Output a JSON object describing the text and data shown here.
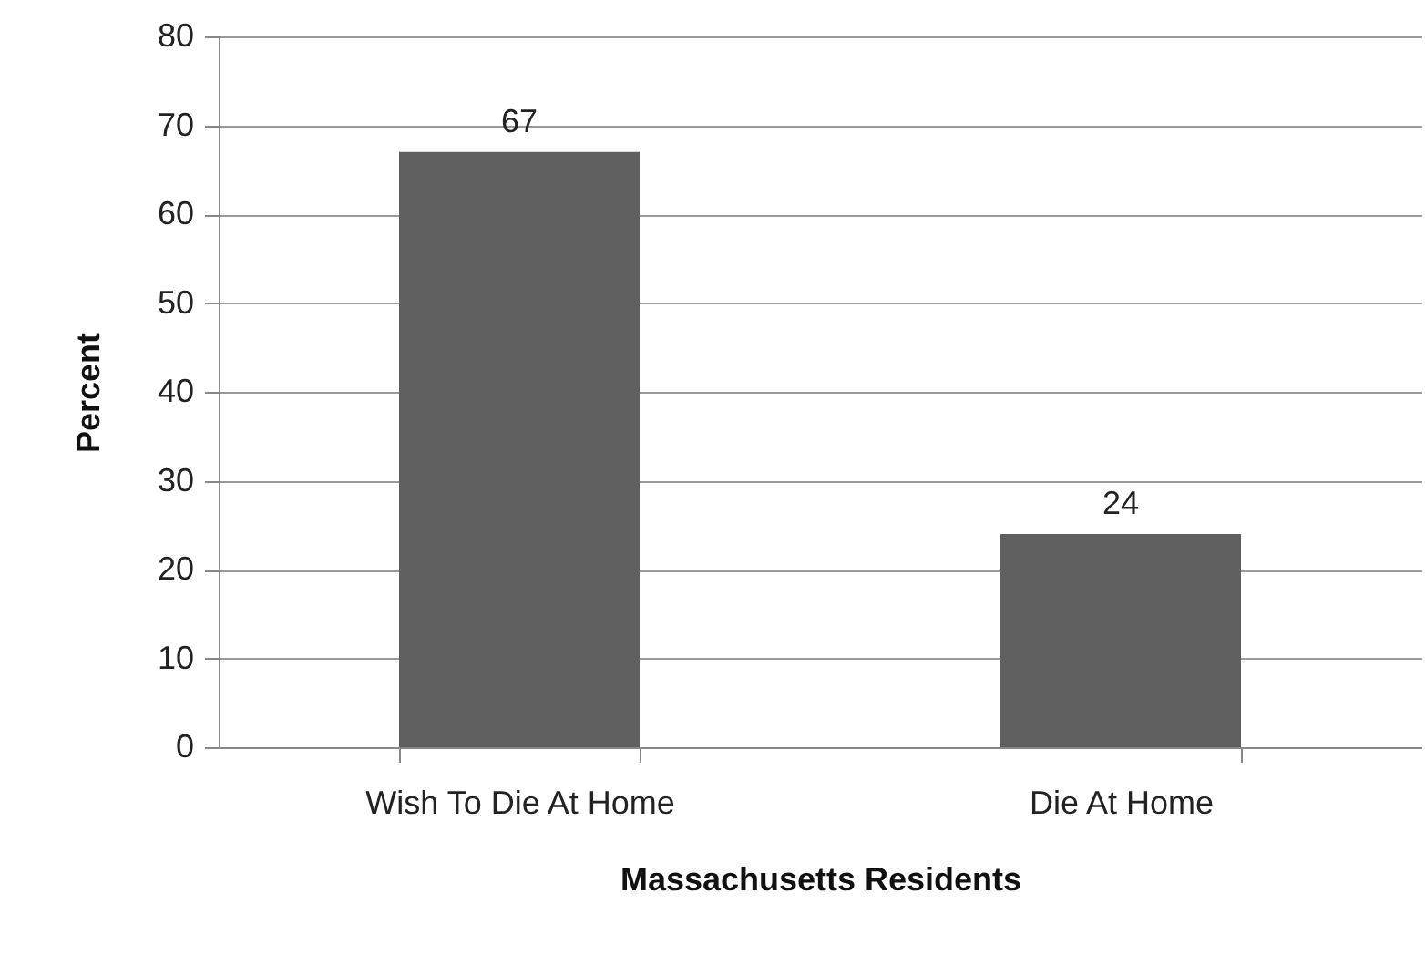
{
  "chart_data": {
    "type": "bar",
    "xlabel": "Massachusetts Residents",
    "ylabel": "Percent",
    "categories": [
      "Wish To Die At Home",
      "Die At Home"
    ],
    "values": [
      67,
      24
    ],
    "color": "#5f5f5f",
    "ylim": [
      0,
      80
    ],
    "yticks": [
      0,
      10,
      20,
      30,
      40,
      50,
      60,
      70,
      80
    ],
    "grid": "y",
    "data_labels": true
  }
}
